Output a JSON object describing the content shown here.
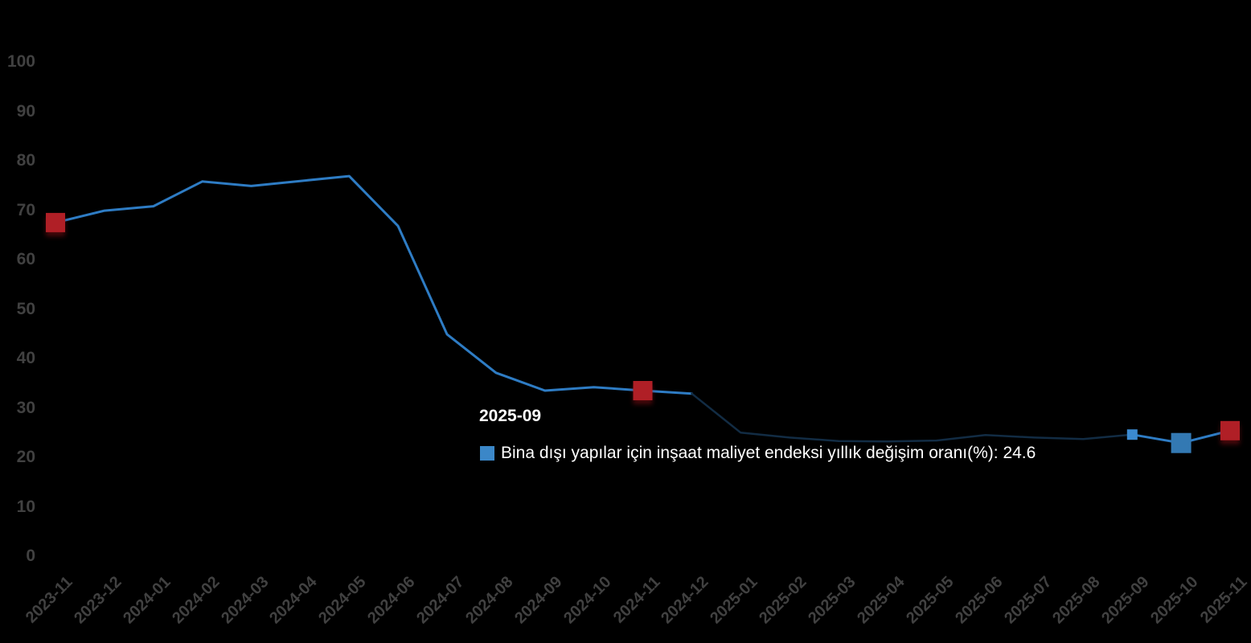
{
  "chart_data": {
    "type": "line",
    "title": "",
    "categories": [
      "2023-11",
      "2023-12",
      "2024-01",
      "2024-02",
      "2024-03",
      "2024-04",
      "2024-05",
      "2024-06",
      "2024-07",
      "2024-08",
      "2024-09",
      "2024-10",
      "2024-11",
      "2024-12",
      "2025-01",
      "2025-02",
      "2025-03",
      "2025-04",
      "2025-05",
      "2025-06",
      "2025-07",
      "2025-08",
      "2025-09",
      "2025-10",
      "2025-11"
    ],
    "series": [
      {
        "name": "Bina dışı yapılar için inşaat maliyet endeksi yıllık değişim oranı(%)",
        "values": [
          67.5,
          69.9,
          70.8,
          75.8,
          74.9,
          75.9,
          76.9,
          66.8,
          44.9,
          37.1,
          33.5,
          34.2,
          33.5,
          32.9,
          25.0,
          24.0,
          23.3,
          23.2,
          23.4,
          24.5,
          24.0,
          23.7,
          24.6,
          22.9,
          25.4
        ]
      }
    ],
    "xlabel": "",
    "ylabel": "",
    "ylim": [
      0,
      100
    ],
    "y_ticks": [
      0,
      10,
      20,
      30,
      40,
      50,
      60,
      70,
      80,
      90,
      100
    ],
    "grid": false,
    "legend_position": "none",
    "colors": {
      "line_bright": "#2e7cc4",
      "line_dim": "#122c44",
      "marker_red": "#b01f26",
      "marker_blue_small": "#3b8ad0",
      "marker_blue_large": "#3379b3",
      "axis_label": "#414141",
      "background": "#000000"
    },
    "segments": [
      {
        "from": 0,
        "to": 13,
        "style": "bright"
      },
      {
        "from": 13,
        "to": 22,
        "style": "dim"
      },
      {
        "from": 22,
        "to": 24,
        "style": "bright"
      }
    ],
    "markers": [
      {
        "index": 0,
        "style": "red"
      },
      {
        "index": 12,
        "style": "red"
      },
      {
        "index": 22,
        "style": "blue_small"
      },
      {
        "index": 23,
        "style": "blue_large"
      },
      {
        "index": 24,
        "style": "red"
      }
    ]
  },
  "tooltip": {
    "title": "2025-09",
    "series_name": "Bina dışı yapılar için inşaat maliyet endeksi yıllık değişim oranı(%)",
    "separator": ": ",
    "value": "24.6",
    "swatch_color": "#3b87c8"
  }
}
